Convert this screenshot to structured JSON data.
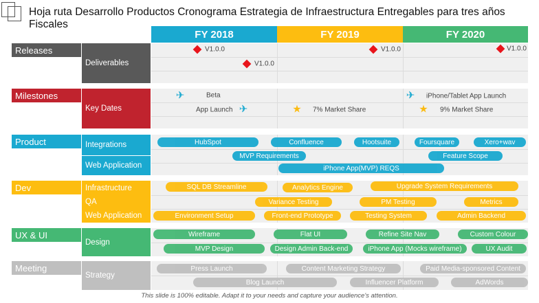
{
  "title": "Hoja ruta Desarrollo Productos Cronograma Estrategia de Infraestructura Entregables para tres años Fiscales",
  "years": [
    "FY 2018",
    "FY 2019",
    "FY 2020"
  ],
  "colors": {
    "fy2018": "#1aa9d0",
    "fy2019": "#fdbd10",
    "fy2020": "#45b874",
    "releases": "#595959",
    "milestones": "#c0232e",
    "product": "#1aa9d0",
    "dev": "#fdbd10",
    "ux": "#45b874",
    "meeting": "#bfbfbf",
    "diamond": "#e8141b",
    "star": "#fbbb12"
  },
  "sections": {
    "releases": {
      "label": "Releases",
      "subs": [
        "Deliverables"
      ]
    },
    "milestones": {
      "label": "Milestones",
      "subs": [
        "Key Dates"
      ]
    },
    "product": {
      "label": "Product",
      "subs": [
        "Integrations",
        "Web Application"
      ]
    },
    "dev": {
      "label": "Dev",
      "subs": [
        "Infrastructure",
        "QA",
        "Web Application"
      ]
    },
    "ux": {
      "label": "UX & UI",
      "subs": [
        "Design"
      ]
    },
    "meeting": {
      "label": "Meeting",
      "subs": [
        "Strategy"
      ]
    }
  },
  "releases": [
    "V1.0.0",
    "V1.0.0",
    "V1.0.0",
    "V1.0.0"
  ],
  "milestones": [
    "Beta",
    "App Launch",
    "7% Market Share",
    "iPhone/Tablet App Launch",
    "9% Market Share"
  ],
  "product_pills": [
    "HubSpot",
    "Confluence",
    "Hootsuite",
    "Foursquare",
    "Xero+wav",
    "MVP Requirements",
    "Feature Scope",
    "iPhone App(MVP) REQS"
  ],
  "dev_pills": [
    "SQL DB Streamline",
    "Analytics Engine",
    "Upgrade System  Requirements",
    "Variance Testing",
    "PM Testing",
    "Metrics",
    "Environment  Setup",
    "Front-end  Prototype",
    "Testing System",
    "Admin Backend"
  ],
  "ux_pills": [
    "Wireframe",
    "Flat UI",
    "Refine Site Nav",
    "Custom Colour",
    "MVP Design",
    "Design Admin Back-end",
    "iPhone App (Mocks wireframe)",
    "UX Audit"
  ],
  "meeting_pills": [
    "Press Launch",
    "Content Marketing Strategy",
    "Paid Media-sponsored Content",
    "Blog Launch",
    "Influencer  Platform",
    "AdWords"
  ],
  "footer": "This slide is 100% editable. Adapt it to your needs and capture your audience's attention."
}
